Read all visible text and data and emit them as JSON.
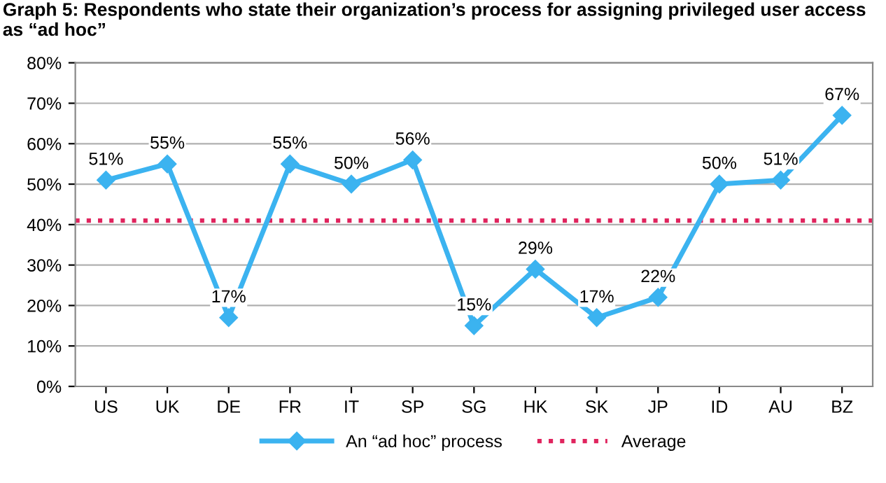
{
  "chart_data": {
    "type": "line",
    "title": "Graph 5: Respondents who state their organization’s process for assigning privileged user access as “ad hoc”",
    "categories": [
      "US",
      "UK",
      "DE",
      "FR",
      "IT",
      "SP",
      "SG",
      "HK",
      "SK",
      "JP",
      "ID",
      "AU",
      "BZ"
    ],
    "series": [
      {
        "name": "An “ad hoc” process",
        "color": "#3bb3f0",
        "values": [
          51,
          55,
          17,
          55,
          50,
          56,
          15,
          29,
          17,
          22,
          50,
          51,
          67
        ],
        "value_labels": [
          "51%",
          "55%",
          "17%",
          "55%",
          "50%",
          "56%",
          "15%",
          "29%",
          "17%",
          "22%",
          "50%",
          "51%",
          "67%"
        ]
      }
    ],
    "ref_lines": [
      {
        "axis": "y",
        "value": 41,
        "label": "Average",
        "color": "#e0245e",
        "line_style": "dotted"
      }
    ],
    "ylim": [
      0,
      80
    ],
    "yticks": [
      {
        "value": 0,
        "label": "0%"
      },
      {
        "value": 10,
        "label": "10%"
      },
      {
        "value": 20,
        "label": "20%"
      },
      {
        "value": 30,
        "label": "30%"
      },
      {
        "value": 40,
        "label": "40%"
      },
      {
        "value": 50,
        "label": "50%"
      },
      {
        "value": 60,
        "label": "60%"
      },
      {
        "value": 70,
        "label": "70%"
      },
      {
        "value": 80,
        "label": "80%"
      }
    ],
    "grid": "y",
    "legend": "bottom",
    "marker": "diamond",
    "line_style": "solid"
  }
}
